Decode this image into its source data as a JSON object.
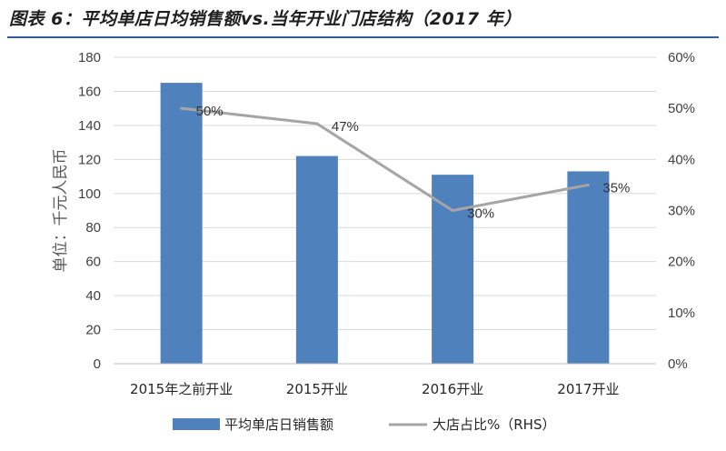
{
  "figure": {
    "title": "图表 6：平均单店日均销售额vs.当年开业门店结构（2017 年）"
  },
  "chart_data": {
    "type": "bar",
    "title": "图表 6：平均单店日均销售额vs.当年开业门店结构（2017 年）",
    "categories": [
      "2015年之前开业",
      "2015开业",
      "2016开业",
      "2017开业"
    ],
    "series": [
      {
        "name": "平均单店日销售额",
        "type": "bar",
        "axis": "left",
        "values": [
          165,
          122,
          111,
          113
        ],
        "color": "#4f81bd"
      },
      {
        "name": "大店占比%（RHS）",
        "type": "line",
        "axis": "right",
        "values": [
          0.5,
          0.47,
          0.3,
          0.35
        ],
        "color": "#a5a5a5"
      }
    ],
    "data_labels": [
      "50%",
      "47%",
      "30%",
      "35%"
    ],
    "ylabel": "单位：千元人民币",
    "y_left": {
      "min": 0,
      "max": 180,
      "ticks": [
        0,
        20,
        40,
        60,
        80,
        100,
        120,
        140,
        160,
        180
      ]
    },
    "y_right": {
      "min": 0,
      "max": 0.6,
      "ticks": [
        "0%",
        "10%",
        "20%",
        "30%",
        "40%",
        "50%",
        "60%"
      ]
    },
    "grid": true,
    "legend_position": "bottom"
  }
}
